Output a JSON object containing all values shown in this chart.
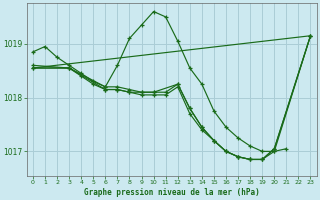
{
  "background_color": "#cce9f0",
  "grid_color": "#aacdd6",
  "line_color": "#1a6b1a",
  "title": "Graphe pression niveau de la mer (hPa)",
  "yticks": [
    1017,
    1018,
    1019
  ],
  "xlim": [
    -0.5,
    23.5
  ],
  "ylim": [
    1016.55,
    1019.75
  ],
  "xticks": [
    0,
    1,
    2,
    3,
    4,
    5,
    6,
    7,
    8,
    9,
    10,
    11,
    12,
    13,
    14,
    15,
    16,
    17,
    18,
    19,
    20,
    21,
    22,
    23
  ],
  "line1_x": [
    0,
    1,
    2,
    3,
    4,
    5,
    6,
    7,
    8,
    9,
    10,
    11,
    12,
    13,
    14,
    15,
    16,
    17,
    18,
    19,
    20,
    21
  ],
  "line1_y": [
    1018.85,
    1018.95,
    1018.75,
    1018.6,
    1018.45,
    1018.3,
    1018.2,
    1018.6,
    1019.1,
    1019.35,
    1019.6,
    1019.5,
    1019.05,
    1018.55,
    1018.25,
    1017.75,
    1017.45,
    1017.25,
    1017.1,
    1017.0,
    1017.0,
    1017.05
  ],
  "line2_x": [
    0,
    3,
    6,
    7,
    8,
    9,
    10,
    12,
    13,
    14,
    15,
    16,
    17,
    18,
    19,
    20,
    23
  ],
  "line2_y": [
    1018.6,
    1018.55,
    1018.2,
    1018.2,
    1018.15,
    1018.1,
    1018.1,
    1018.25,
    1017.8,
    1017.45,
    1017.2,
    1017.0,
    1016.9,
    1016.85,
    1016.85,
    1017.0,
    1019.15
  ],
  "line3_x": [
    0,
    3,
    4,
    5,
    6,
    7,
    8,
    9,
    10,
    11,
    12,
    13,
    14,
    15,
    16,
    17,
    18,
    19,
    20,
    23
  ],
  "line3_y": [
    1018.55,
    1018.55,
    1018.4,
    1018.25,
    1018.15,
    1018.15,
    1018.1,
    1018.1,
    1018.1,
    1018.1,
    1018.25,
    1017.8,
    1017.45,
    1017.2,
    1017.0,
    1016.9,
    1016.85,
    1016.85,
    1017.05,
    1019.15
  ],
  "line4_x": [
    0,
    3,
    6,
    7,
    8,
    9,
    10,
    11,
    12,
    13,
    14,
    15,
    16,
    17,
    18,
    19,
    20,
    23
  ],
  "line4_y": [
    1018.55,
    1018.55,
    1018.15,
    1018.15,
    1018.1,
    1018.05,
    1018.05,
    1018.05,
    1018.2,
    1017.7,
    1017.4,
    1017.2,
    1017.0,
    1016.9,
    1016.85,
    1016.85,
    1017.05,
    1019.15
  ],
  "line5_x": [
    0,
    23
  ],
  "line5_y": [
    1018.55,
    1019.15
  ]
}
